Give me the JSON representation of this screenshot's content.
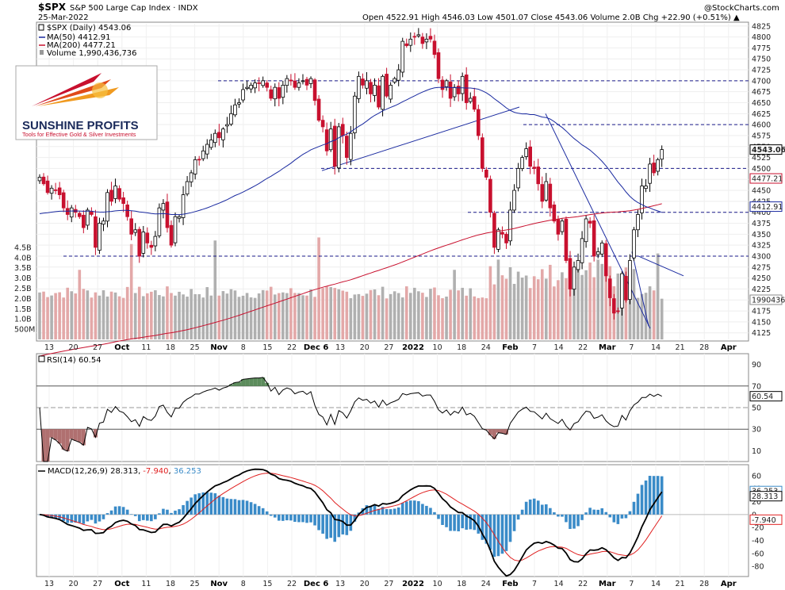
{
  "header": {
    "symbol": "$SPX",
    "name": "S&P 500 Large Cap Index",
    "exchange": "INDX",
    "date": "25-Mar-2022",
    "ohlc_text": "Open 4522.91  High 4546.03  Low 4501.07  Close 4543.06  Volume 2.0B  Chg +22.90 (+0.51%) ▲",
    "watermark": "@StockCharts.com"
  },
  "legend": {
    "price": "$SPX (Daily) 4543.06",
    "ma50": "MA(50) 4412.91",
    "ma200": "MA(200) 4477.21",
    "volume": "Volume 1,990,436,736"
  },
  "logo": {
    "brand": "SUNSHINE PROFITS",
    "tagline": "Tools for Effective Gold & Silver Investments"
  },
  "colors": {
    "up": "#000000",
    "down": "#c8102e",
    "ma50": "#1a2aa0",
    "ma200": "#c8102e",
    "vol_up": "#b0b0b0",
    "vol_down": "#e3a8a8",
    "dash": "#1a1a8a",
    "rsi_ob": "#5c8c5c",
    "rsi_os": "#b07070",
    "macd": "#000000",
    "signal": "#e02020",
    "hist": "#3a8bc8"
  },
  "chart_data": [
    {
      "type": "candlestick",
      "title": "$SPX S&P 500 Large Cap Index INDX",
      "ylim": [
        4110,
        4830
      ],
      "y_ticks": [
        4125,
        4150,
        4175,
        4200,
        4225,
        4250,
        4275,
        4300,
        4325,
        4350,
        4375,
        4400,
        4425,
        4450,
        4475,
        4500,
        4525,
        4550,
        4575,
        4600,
        4625,
        4650,
        4675,
        4700,
        4725,
        4750,
        4775,
        4800,
        4825
      ],
      "x_ticks": [
        "13",
        "20",
        "27",
        "Oct",
        "11",
        "18",
        "25",
        "Nov",
        "8",
        "15",
        "22",
        "Dec 6",
        "13",
        "20",
        "27",
        "2022",
        "10",
        "18",
        "24",
        "Feb",
        "7",
        "14",
        "22",
        "Mar",
        "7",
        "14",
        "21",
        "28",
        "Apr"
      ],
      "closes": [
        4480,
        4465,
        4445,
        4455,
        4450,
        4440,
        4410,
        4395,
        4410,
        4400,
        4390,
        4365,
        4405,
        4395,
        4320,
        4375,
        4380,
        4445,
        4425,
        4460,
        4430,
        4420,
        4390,
        4350,
        4360,
        4300,
        4355,
        4330,
        4320,
        4345,
        4410,
        4420,
        4365,
        4325,
        4390,
        4390,
        4440,
        4470,
        4490,
        4520,
        4520,
        4540,
        4555,
        4565,
        4580,
        4570,
        4590,
        4600,
        4625,
        4645,
        4650,
        4680,
        4685,
        4690,
        4695,
        4695,
        4700,
        4685,
        4660,
        4685,
        4660,
        4690,
        4705,
        4700,
        4685,
        4695,
        4700,
        4690,
        4705,
        4655,
        4610,
        4595,
        4540,
        4590,
        4505,
        4595,
        4575,
        4525,
        4580,
        4665,
        4710,
        4690,
        4700,
        4670,
        4690,
        4640,
        4710,
        4665,
        4690,
        4705,
        4725,
        4790,
        4780,
        4795,
        4800,
        4805,
        4785,
        4795,
        4795,
        4760,
        4705,
        4680,
        4700,
        4660,
        4685,
        4670,
        4710,
        4650,
        4660,
        4635,
        4575,
        4500,
        4480,
        4400,
        4320,
        4360,
        4350,
        4330,
        4405,
        4450,
        4500,
        4525,
        4545,
        4505,
        4500,
        4465,
        4425,
        4470,
        4410,
        4380,
        4350,
        4380,
        4290,
        4225,
        4275,
        4290,
        4340,
        4385,
        4375,
        4300,
        4310,
        4330,
        4255,
        4205,
        4170,
        4175,
        4260,
        4200,
        4290,
        4360,
        4395,
        4460,
        4460,
        4510,
        4490,
        4520,
        4543.06
      ],
      "series": [
        {
          "name": "MA(50) 4412.91",
          "last": 4412.91
        },
        {
          "name": "MA(200) 4477.21",
          "last": 4477.21
        }
      ],
      "right_labels": [
        "4543.06",
        "4477.21",
        "4412.91",
        "1990436"
      ]
    },
    {
      "type": "bar",
      "title": "Volume 1,990,436,736",
      "y_ticks_text": [
        "500M",
        "1.0B",
        "1.5B",
        "2.0B",
        "2.5B",
        "3.0B",
        "3.5B",
        "4.0B",
        "4.5B"
      ],
      "last": 1990436736
    },
    {
      "type": "line",
      "title": "RSI(14) 60.54",
      "ylim": [
        0,
        100
      ],
      "y_ticks": [
        10,
        30,
        50,
        70,
        90
      ],
      "last_label": "60.54"
    },
    {
      "type": "line",
      "title": "MACD(12,26,9) 28.313, -7.940, 36.253",
      "macd_label": "MACD(12,26,9) 28.313,",
      "hist_label": "-7.940",
      "signal_label": "36.253",
      "y_ticks": [
        60,
        40,
        20,
        0,
        -20,
        -40,
        -60,
        -80
      ],
      "right_labels": [
        "36.253",
        "28.313",
        "-7.940"
      ]
    }
  ]
}
